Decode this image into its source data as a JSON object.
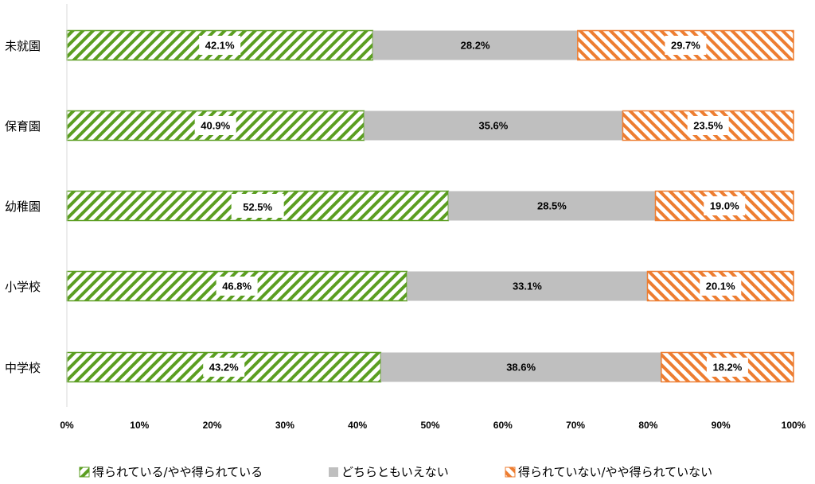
{
  "chart_data": {
    "type": "bar",
    "orientation": "horizontal",
    "stacked": "percent",
    "categories": [
      "未就園",
      "保育園",
      "幼稚園",
      "小学校",
      "中学校"
    ],
    "series": [
      {
        "name": "得られている/やや得られている",
        "values": [
          42.1,
          40.9,
          52.5,
          46.8,
          43.2
        ],
        "color": "#5b9e21",
        "pattern": "diagonal-stripes"
      },
      {
        "name": "どちらともいえない",
        "values": [
          28.2,
          35.6,
          28.5,
          33.1,
          38.6
        ],
        "color": "#bfbfbf",
        "pattern": "solid"
      },
      {
        "name": "得られていない/やや得られていない",
        "values": [
          29.7,
          23.5,
          19.0,
          20.1,
          18.2
        ],
        "color": "#ed7d31",
        "pattern": "reverse-diagonal-stripes"
      }
    ],
    "xlim": [
      0,
      100
    ],
    "xticks": [
      "0%",
      "10%",
      "20%",
      "30%",
      "40%",
      "50%",
      "60%",
      "70%",
      "80%",
      "90%",
      "100%"
    ],
    "grid": false,
    "legend": "bottom",
    "data_label_suffix": "%"
  }
}
